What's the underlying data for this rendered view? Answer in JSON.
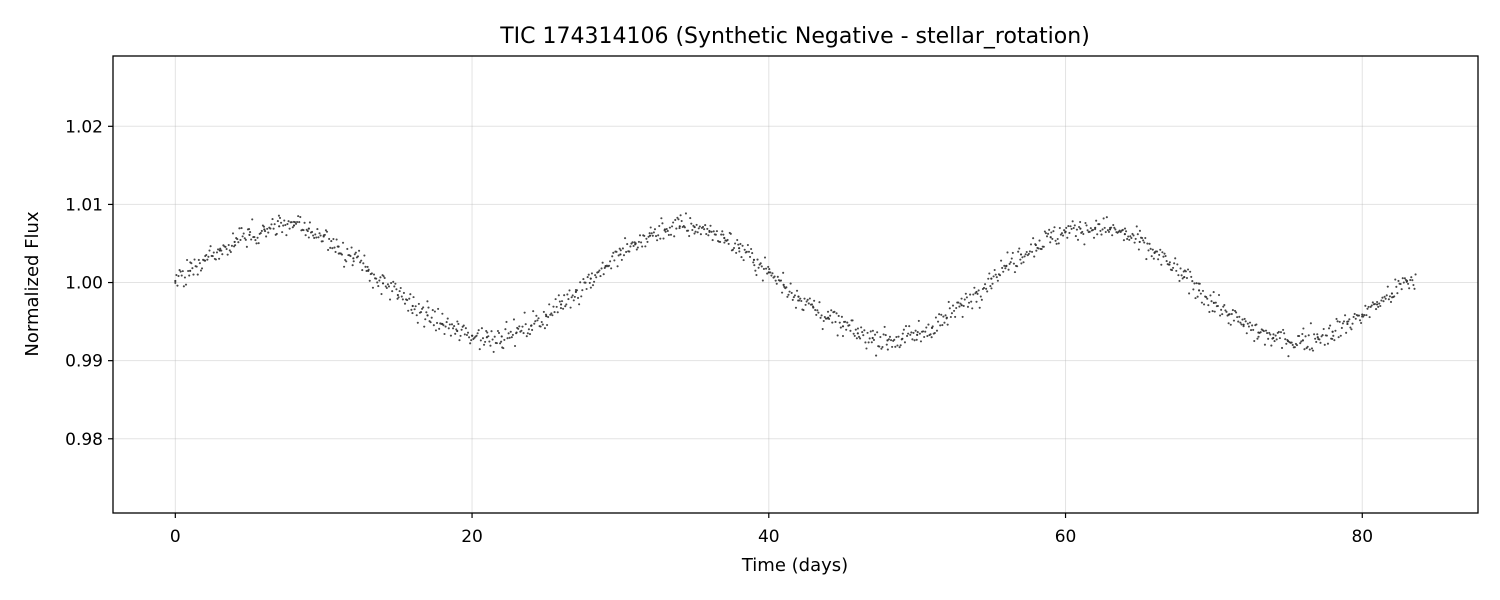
{
  "chart_data": {
    "type": "scatter",
    "title": "TIC 174314106 (Synthetic Negative - stellar_rotation)",
    "xlabel": "Time (days)",
    "ylabel": "Normalized Flux",
    "xlim": [
      -4.2,
      87.8
    ],
    "ylim": [
      0.9705,
      1.029
    ],
    "xticks": [
      0,
      20,
      40,
      60,
      80
    ],
    "xtick_labels": [
      "0",
      "20",
      "40",
      "60",
      "80"
    ],
    "yticks": [
      0.98,
      0.99,
      1.0,
      1.01,
      1.02
    ],
    "ytick_labels": [
      "0.98",
      "0.99",
      "1.00",
      "1.01",
      "1.02"
    ],
    "grid": true,
    "legend": "none",
    "marker_color": "#333333",
    "series": [
      {
        "x": [
          0,
          1,
          2,
          3,
          4,
          5,
          6,
          7,
          8,
          9,
          10,
          11,
          12,
          13,
          14,
          15,
          16,
          17,
          18,
          19,
          20,
          21,
          22,
          23,
          24,
          25,
          26,
          27,
          28,
          29,
          30,
          31,
          32,
          33,
          34,
          35,
          36,
          37,
          38,
          39,
          40,
          41,
          42,
          43,
          44,
          45,
          46,
          47,
          48,
          49,
          50,
          51,
          52,
          53,
          54,
          55,
          56,
          57,
          58,
          59,
          60,
          61,
          62,
          63,
          64,
          65,
          66,
          67,
          68,
          69,
          70,
          71,
          72,
          73,
          74,
          75,
          76,
          77,
          78,
          79,
          80,
          81,
          82,
          83
        ],
        "y": [
          1.0002,
          1.0015,
          1.0028,
          1.0041,
          1.0052,
          1.0061,
          1.0068,
          1.0072,
          1.0073,
          1.0069,
          1.0059,
          1.0046,
          1.0031,
          1.0015,
          0.9999,
          0.9984,
          0.997,
          0.9958,
          0.9947,
          0.9938,
          0.9932,
          0.993,
          0.9931,
          0.9936,
          0.9945,
          0.9957,
          0.9972,
          0.9988,
          1.0005,
          1.0021,
          1.0036,
          1.0049,
          1.006,
          1.0068,
          1.0072,
          1.0071,
          1.0066,
          1.0057,
          1.0044,
          1.0029,
          1.0013,
          0.9997,
          0.9982,
          0.9968,
          0.9955,
          0.9944,
          0.9935,
          0.9929,
          0.9926,
          0.9928,
          0.9933,
          0.9942,
          0.9955,
          0.9971,
          0.9988,
          1.0005,
          1.0021,
          1.0036,
          1.0048,
          1.0058,
          1.0065,
          1.0069,
          1.007,
          1.0068,
          1.0062,
          1.0052,
          1.0038,
          1.0023,
          1.0007,
          0.999,
          0.9974,
          0.9959,
          0.9946,
          0.9936,
          0.9929,
          0.9925,
          0.9926,
          0.993,
          0.9937,
          0.9947,
          0.9959,
          0.9972,
          0.9986,
          1.0001
        ]
      }
    ]
  }
}
